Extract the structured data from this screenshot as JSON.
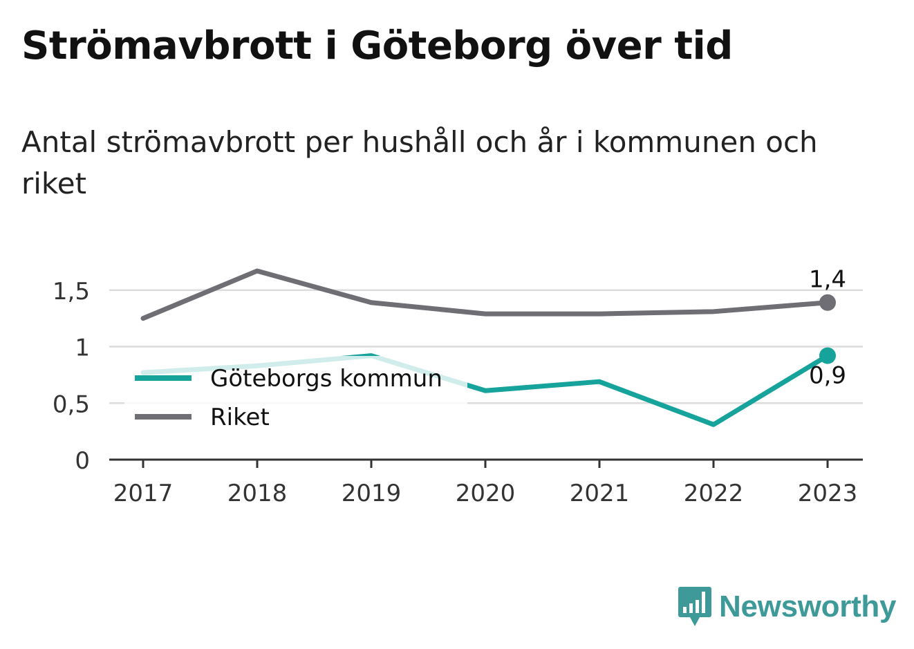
{
  "header": {
    "title": "Strömavbrott i Göteborg över tid",
    "subtitle": "Antal strömavbrott per hushåll och år i kommunen och riket"
  },
  "brand": {
    "name": "Newsworthy",
    "color": "#3d9a98",
    "icon": "bar-chart-speech-bubble-icon"
  },
  "chart_data": {
    "type": "line",
    "x": [
      "2017",
      "2018",
      "2019",
      "2020",
      "2021",
      "2022",
      "2023"
    ],
    "y_ticks": [
      0,
      0.5,
      1,
      1.5
    ],
    "y_tick_labels": [
      "0",
      "0,5",
      "1",
      "1,5"
    ],
    "ylim": [
      0,
      1.75
    ],
    "grid": true,
    "legend_placement": "left-middle",
    "series": [
      {
        "name": "Göteborgs kommun",
        "color": "#16a39b",
        "values": [
          0.77,
          0.83,
          0.92,
          0.61,
          0.69,
          0.31,
          0.92
        ],
        "end_label": "0,9"
      },
      {
        "name": "Riket",
        "color": "#6f6e74",
        "values": [
          1.25,
          1.67,
          1.39,
          1.29,
          1.29,
          1.31,
          1.39
        ],
        "end_label": "1,4"
      }
    ]
  }
}
